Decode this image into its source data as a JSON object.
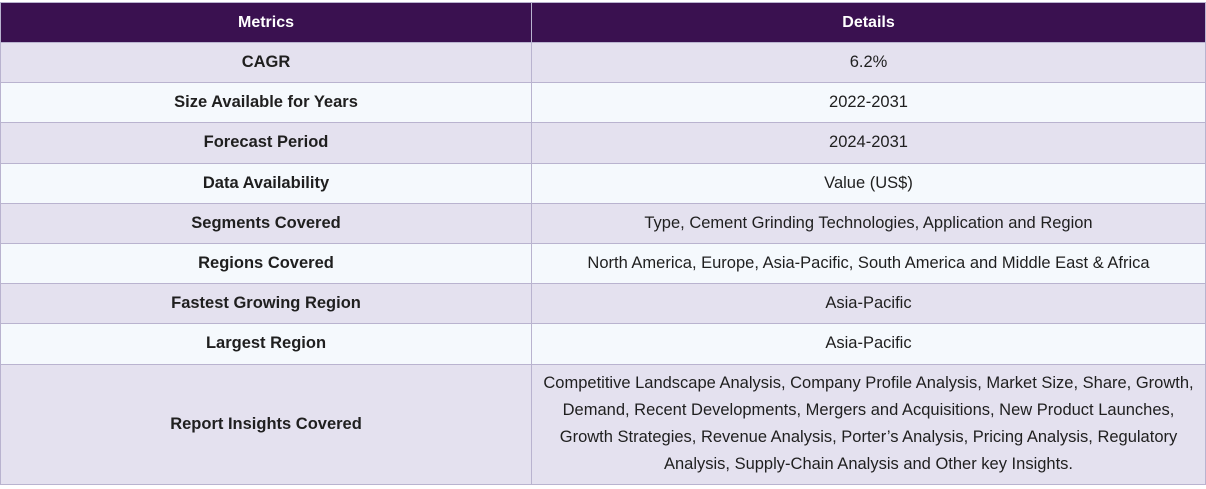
{
  "headers": {
    "metrics": "Metrics",
    "details": "Details"
  },
  "rows": [
    {
      "metric": "CAGR",
      "detail": "6.2%"
    },
    {
      "metric": "Size Available for Years",
      "detail": "2022-2031"
    },
    {
      "metric": "Forecast Period",
      "detail": "2024-2031"
    },
    {
      "metric": "Data Availability",
      "detail": "Value (US$)"
    },
    {
      "metric": "Segments Covered",
      "detail": "Type, Cement Grinding Technologies, Application and Region"
    },
    {
      "metric": "Regions Covered",
      "detail": "North America, Europe, Asia-Pacific, South America and Middle East & Africa"
    },
    {
      "metric": "Fastest Growing Region",
      "detail": "Asia-Pacific"
    },
    {
      "metric": "Largest Region",
      "detail": "Asia-Pacific"
    },
    {
      "metric": "Report Insights Covered",
      "detail": "Competitive Landscape Analysis, Company Profile Analysis, Market Size, Share, Growth, Demand, Recent Developments, Mergers and Acquisitions, New Product Launches, Growth Strategies, Revenue Analysis, Porter’s Analysis, Pricing Analysis, Regulatory Analysis, Supply-Chain Analysis and Other key Insights."
    }
  ],
  "colors": {
    "header_bg": "#3a1150",
    "row_alt_a": "#e4e1ef",
    "row_alt_b": "#f5f9fd",
    "border": "#b9b3cf"
  }
}
